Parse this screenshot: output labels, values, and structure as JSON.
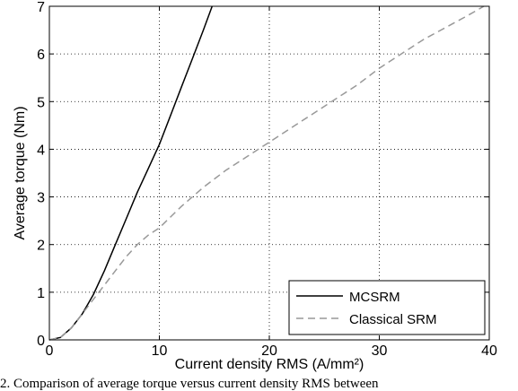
{
  "chart_data": {
    "type": "line",
    "title": "",
    "xlabel": "Current density RMS (A/mm²)",
    "ylabel": "Average torque (Nm)",
    "xlim": [
      0,
      40
    ],
    "ylim": [
      0,
      7
    ],
    "xticks": [
      0,
      10,
      20,
      30,
      40
    ],
    "yticks": [
      0,
      1,
      2,
      3,
      4,
      5,
      6,
      7
    ],
    "grid": true,
    "legend_position": "bottom-right",
    "series": [
      {
        "name": "MCSRM",
        "style": "solid",
        "color": "#000000",
        "x": [
          0,
          1,
          2,
          3,
          4,
          5,
          6,
          7,
          8,
          9,
          10,
          11,
          12,
          13,
          14,
          14.8
        ],
        "y": [
          0,
          0.05,
          0.25,
          0.55,
          0.95,
          1.45,
          2.0,
          2.55,
          3.1,
          3.6,
          4.1,
          4.7,
          5.3,
          5.9,
          6.5,
          7.0
        ]
      },
      {
        "name": "Classical SRM",
        "style": "dashed",
        "color": "#999999",
        "x": [
          0,
          1,
          2,
          3,
          4,
          5,
          6,
          7,
          8,
          9,
          10,
          12,
          14,
          16,
          18,
          20,
          22,
          24,
          26,
          28,
          30,
          32,
          34,
          36,
          38,
          39.5
        ],
        "y": [
          0,
          0.05,
          0.25,
          0.55,
          0.85,
          1.15,
          1.45,
          1.75,
          2.0,
          2.2,
          2.35,
          2.8,
          3.2,
          3.55,
          3.85,
          4.15,
          4.45,
          4.75,
          5.05,
          5.35,
          5.7,
          6.0,
          6.3,
          6.55,
          6.8,
          7.0
        ]
      }
    ]
  },
  "caption": "2. Comparison of average torque versus current density RMS between"
}
